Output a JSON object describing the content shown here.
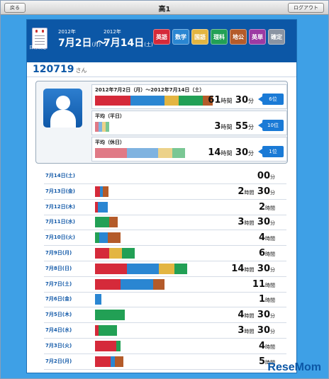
{
  "topbar": {
    "back_label": "戻る",
    "title": "高1",
    "logout_label": "ログアウト"
  },
  "header": {
    "calendar_label": "日付設定",
    "start_year": "2012年",
    "start_date": "7月2日",
    "start_dow": "(月)",
    "tilde": "〜",
    "end_year": "2012年",
    "end_date": "7月14日",
    "end_dow": "(土)",
    "subjects": [
      {
        "label": "英語",
        "color": "#d52a3a"
      },
      {
        "label": "数学",
        "color": "#2a86d2"
      },
      {
        "label": "国語",
        "color": "#e3b541"
      },
      {
        "label": "理科",
        "color": "#22a055"
      },
      {
        "label": "地公",
        "color": "#b45b2a"
      },
      {
        "label": "英単",
        "color": "#9c3aa3"
      },
      {
        "label": "確定",
        "color": "#8a94a3"
      }
    ]
  },
  "user": {
    "name": "120719",
    "suffix": "さん"
  },
  "summary": [
    {
      "label": "2012年7月2日（月）〜2012年7月14日（土）",
      "hours": "61",
      "hunit": "時間",
      "mins": "30",
      "munit": "分",
      "rank": "6位",
      "segments": [
        {
          "c": "#d52a3a",
          "w": 50
        },
        {
          "c": "#2a86d2",
          "w": 48
        },
        {
          "c": "#e3b541",
          "w": 20
        },
        {
          "c": "#22a055",
          "w": 34
        },
        {
          "c": "#b45b2a",
          "w": 14
        }
      ]
    },
    {
      "label": "平均（平日）",
      "hours": "3",
      "hunit": "時間",
      "mins": "55",
      "munit": "分",
      "rank": "10位",
      "segments": [
        {
          "c": "#e07a86",
          "w": 5
        },
        {
          "c": "#7fb3e0",
          "w": 5
        },
        {
          "c": "#ecd28a",
          "w": 5
        },
        {
          "c": "#7ac794",
          "w": 5
        }
      ]
    },
    {
      "label": "平均（休日）",
      "hours": "14",
      "hunit": "時間",
      "mins": "30",
      "munit": "分",
      "rank": "1位",
      "segments": [
        {
          "c": "#e07a86",
          "w": 45
        },
        {
          "c": "#7fb3e0",
          "w": 44
        },
        {
          "c": "#ecd28a",
          "w": 20
        },
        {
          "c": "#7ac794",
          "w": 18
        }
      ]
    }
  ],
  "days": [
    {
      "date": "7月14日(土)",
      "hours": "",
      "hunit": "",
      "mins": "00",
      "munit": "分",
      "segments": []
    },
    {
      "date": "7月13日(金)",
      "hours": "2",
      "hunit": "時間",
      "mins": "30",
      "munit": "分",
      "segments": [
        {
          "c": "#d52a3a",
          "w": 7
        },
        {
          "c": "#2a86d2",
          "w": 4
        },
        {
          "c": "#b45b2a",
          "w": 8
        }
      ]
    },
    {
      "date": "7月12日(木)",
      "hours": "2",
      "hunit": "時間",
      "mins": "",
      "munit": "",
      "segments": [
        {
          "c": "#d52a3a",
          "w": 4
        },
        {
          "c": "#2a86d2",
          "w": 14
        }
      ]
    },
    {
      "date": "7月11日(水)",
      "hours": "3",
      "hunit": "時間",
      "mins": "30",
      "munit": "分",
      "segments": [
        {
          "c": "#22a055",
          "w": 20
        },
        {
          "c": "#b45b2a",
          "w": 12
        }
      ]
    },
    {
      "date": "7月10日(火)",
      "hours": "4",
      "hunit": "時間",
      "mins": "",
      "munit": "",
      "segments": [
        {
          "c": "#22a055",
          "w": 6
        },
        {
          "c": "#2a86d2",
          "w": 12
        },
        {
          "c": "#b45b2a",
          "w": 18
        }
      ]
    },
    {
      "date": "7月9日(月)",
      "hours": "6",
      "hunit": "時間",
      "mins": "",
      "munit": "",
      "segments": [
        {
          "c": "#d52a3a",
          "w": 20
        },
        {
          "c": "#e3b541",
          "w": 18
        },
        {
          "c": "#22a055",
          "w": 18
        }
      ]
    },
    {
      "date": "7月8日(日)",
      "hours": "14",
      "hunit": "時間",
      "mins": "30",
      "munit": "分",
      "segments": [
        {
          "c": "#d52a3a",
          "w": 45
        },
        {
          "c": "#2a86d2",
          "w": 45
        },
        {
          "c": "#e3b541",
          "w": 22
        },
        {
          "c": "#22a055",
          "w": 18
        }
      ]
    },
    {
      "date": "7月7日(土)",
      "hours": "11",
      "hunit": "時間",
      "mins": "",
      "munit": "",
      "segments": [
        {
          "c": "#d52a3a",
          "w": 36
        },
        {
          "c": "#2a86d2",
          "w": 46
        },
        {
          "c": "#b45b2a",
          "w": 16
        }
      ]
    },
    {
      "date": "7月6日(金)",
      "hours": "1",
      "hunit": "時間",
      "mins": "",
      "munit": "",
      "segments": [
        {
          "c": "#2a86d2",
          "w": 9
        }
      ]
    },
    {
      "date": "7月5日(木)",
      "hours": "4",
      "hunit": "時間",
      "mins": "30",
      "munit": "分",
      "segments": [
        {
          "c": "#22a055",
          "w": 42
        }
      ]
    },
    {
      "date": "7月4日(水)",
      "hours": "3",
      "hunit": "時間",
      "mins": "30",
      "munit": "分",
      "segments": [
        {
          "c": "#d52a3a",
          "w": 5
        },
        {
          "c": "#22a055",
          "w": 26
        }
      ]
    },
    {
      "date": "7月3日(火)",
      "hours": "4",
      "hunit": "時間",
      "mins": "",
      "munit": "",
      "segments": [
        {
          "c": "#d52a3a",
          "w": 30
        },
        {
          "c": "#22a055",
          "w": 6
        }
      ]
    },
    {
      "date": "7月2日(月)",
      "hours": "5",
      "hunit": "時間",
      "mins": "",
      "munit": "",
      "segments": [
        {
          "c": "#d52a3a",
          "w": 22
        },
        {
          "c": "#2a86d2",
          "w": 6
        },
        {
          "c": "#b45b2a",
          "w": 12
        }
      ]
    }
  ],
  "watermark": "ReseMom"
}
